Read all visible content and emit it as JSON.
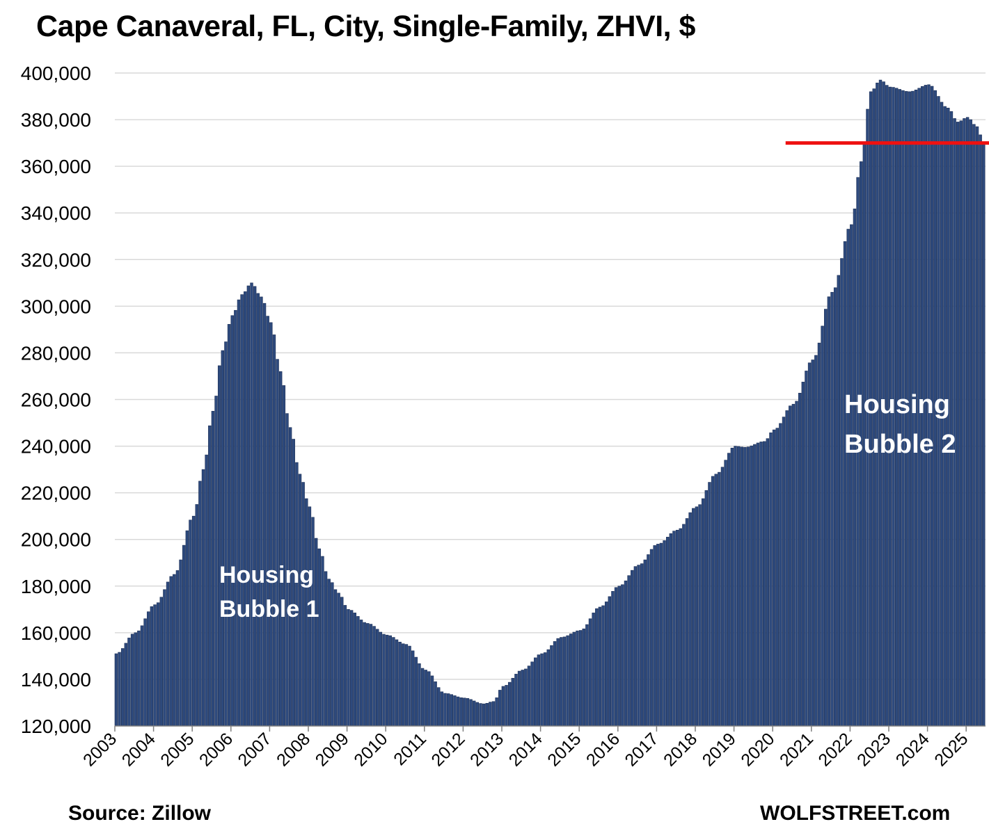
{
  "chart_data": {
    "type": "bar",
    "title": "Cape Canaveral, FL, City, Single-Family, ZHVI, $",
    "xlabel": "",
    "ylabel": "",
    "ylim": [
      120000,
      400000
    ],
    "yticks": [
      "120,000",
      "140,000",
      "160,000",
      "180,000",
      "200,000",
      "220,000",
      "240,000",
      "260,000",
      "280,000",
      "300,000",
      "320,000",
      "340,000",
      "360,000",
      "380,000",
      "400,000"
    ],
    "xticks": [
      "2003",
      "2004",
      "2005",
      "2006",
      "2007",
      "2008",
      "2009",
      "2010",
      "2011",
      "2012",
      "2013",
      "2014",
      "2015",
      "2016",
      "2017",
      "2018",
      "2019",
      "2020",
      "2021",
      "2022",
      "2023",
      "2024",
      "2025"
    ],
    "start": "2003-01",
    "frequency": "monthly",
    "grid": true,
    "bar_color": "#2e4a7d",
    "keypoints": [
      [
        "2003-01",
        151000
      ],
      [
        "2003-07",
        160000
      ],
      [
        "2004-01",
        172000
      ],
      [
        "2004-07",
        185000
      ],
      [
        "2005-01",
        210000
      ],
      [
        "2005-04",
        230000
      ],
      [
        "2005-07",
        255000
      ],
      [
        "2005-10",
        281000
      ],
      [
        "2006-01",
        296000
      ],
      [
        "2006-04",
        305000
      ],
      [
        "2006-07",
        310000
      ],
      [
        "2006-10",
        304000
      ],
      [
        "2007-01",
        293000
      ],
      [
        "2007-04",
        272000
      ],
      [
        "2007-07",
        248000
      ],
      [
        "2007-10",
        228000
      ],
      [
        "2008-01",
        214000
      ],
      [
        "2008-04",
        196000
      ],
      [
        "2008-07",
        183000
      ],
      [
        "2008-10",
        177000
      ],
      [
        "2009-01",
        170000
      ],
      [
        "2009-07",
        164000
      ],
      [
        "2010-01",
        159000
      ],
      [
        "2010-07",
        155000
      ],
      [
        "2011-01",
        144000
      ],
      [
        "2011-07",
        134000
      ],
      [
        "2012-01",
        132000
      ],
      [
        "2012-07",
        129500
      ],
      [
        "2012-10",
        130500
      ],
      [
        "2013-01",
        137000
      ],
      [
        "2013-07",
        144000
      ],
      [
        "2014-01",
        151000
      ],
      [
        "2014-07",
        158000
      ],
      [
        "2015-01",
        161000
      ],
      [
        "2015-07",
        171000
      ],
      [
        "2016-01",
        180000
      ],
      [
        "2016-07",
        189000
      ],
      [
        "2017-01",
        198000
      ],
      [
        "2017-07",
        204000
      ],
      [
        "2018-01",
        214000
      ],
      [
        "2018-07",
        228000
      ],
      [
        "2019-01",
        240000
      ],
      [
        "2019-04",
        239500
      ],
      [
        "2019-10",
        242000
      ],
      [
        "2020-01",
        247000
      ],
      [
        "2020-07",
        258000
      ],
      [
        "2021-01",
        277000
      ],
      [
        "2021-07",
        306000
      ],
      [
        "2022-01",
        335000
      ],
      [
        "2022-04",
        362000
      ],
      [
        "2022-07",
        392000
      ],
      [
        "2022-10",
        397000
      ],
      [
        "2023-01",
        394000
      ],
      [
        "2023-07",
        392000
      ],
      [
        "2024-01",
        395000
      ],
      [
        "2024-07",
        385000
      ],
      [
        "2024-10",
        379000
      ],
      [
        "2025-01",
        381000
      ],
      [
        "2025-04",
        377000
      ],
      [
        "2025-06",
        370000
      ]
    ],
    "reference_line": {
      "value": 370000,
      "from": "2020-05",
      "color": "#ee1111"
    },
    "annotations": [
      {
        "lines": [
          "Housing",
          "Bubble 1"
        ]
      },
      {
        "lines": [
          "Housing",
          "Bubble 2"
        ]
      }
    ]
  },
  "footer": {
    "source": "Source: Zillow",
    "brand": "WOLFSTREET.com"
  }
}
